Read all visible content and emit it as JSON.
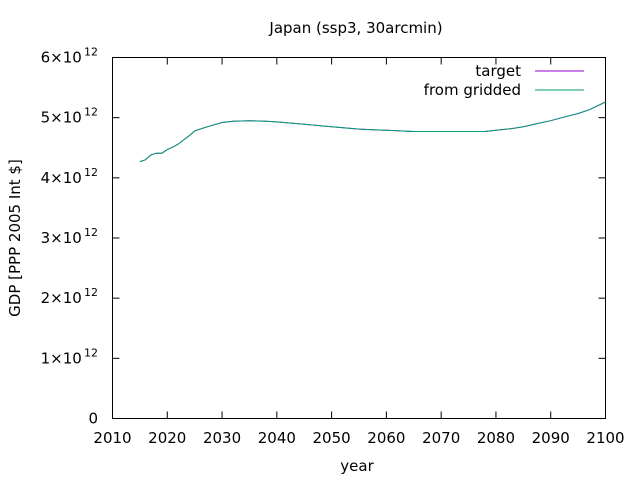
{
  "chart_data": {
    "type": "line",
    "title": "Japan (ssp3, 30arcmin)",
    "xlabel": "year",
    "ylabel": "GDP [PPP 2005 Int $]",
    "xlim": [
      2010,
      2100
    ],
    "ylim": [
      0,
      6000000000000.0
    ],
    "x_ticks": [
      "2010",
      "2020",
      "2030",
      "2040",
      "2050",
      "2060",
      "2070",
      "2080",
      "2090",
      "2100"
    ],
    "y_ticks": [
      {
        "value": 0,
        "mantissa": "0",
        "exp": ""
      },
      {
        "value": 1000000000000.0,
        "mantissa": "1×10",
        "exp": "12"
      },
      {
        "value": 2000000000000.0,
        "mantissa": "2×10",
        "exp": "12"
      },
      {
        "value": 3000000000000.0,
        "mantissa": "3×10",
        "exp": "12"
      },
      {
        "value": 4000000000000.0,
        "mantissa": "4×10",
        "exp": "12"
      },
      {
        "value": 5000000000000.0,
        "mantissa": "5×10",
        "exp": "12"
      },
      {
        "value": 6000000000000.0,
        "mantissa": "6×10",
        "exp": "12"
      }
    ],
    "legend_position": "top-right",
    "grid": false,
    "series": [
      {
        "name": "target",
        "color": "#9400d3",
        "x": [
          2015,
          2016,
          2017,
          2018,
          2019,
          2020,
          2021,
          2022,
          2023,
          2024,
          2025,
          2027,
          2030,
          2032,
          2035,
          2038,
          2040,
          2045,
          2050,
          2055,
          2060,
          2065,
          2070,
          2075,
          2078,
          2080,
          2083,
          2085,
          2087,
          2090,
          2092,
          2095,
          2097,
          2100
        ],
        "y": [
          4270000000000.0,
          4300000000000.0,
          4380000000000.0,
          4410000000000.0,
          4410000000000.0,
          4470000000000.0,
          4510000000000.0,
          4560000000000.0,
          4630000000000.0,
          4700000000000.0,
          4780000000000.0,
          4840000000000.0,
          4920000000000.0,
          4940000000000.0,
          4950000000000.0,
          4940000000000.0,
          4930000000000.0,
          4890000000000.0,
          4850000000000.0,
          4810000000000.0,
          4790000000000.0,
          4770000000000.0,
          4770000000000.0,
          4770000000000.0,
          4770000000000.0,
          4790000000000.0,
          4820000000000.0,
          4850000000000.0,
          4890000000000.0,
          4950000000000.0,
          5000000000000.0,
          5070000000000.0,
          5130000000000.0,
          5260000000000.0
        ]
      },
      {
        "name": "from gridded",
        "color": "#009e73",
        "x": [
          2015,
          2016,
          2017,
          2018,
          2019,
          2020,
          2021,
          2022,
          2023,
          2024,
          2025,
          2027,
          2030,
          2032,
          2035,
          2038,
          2040,
          2045,
          2050,
          2055,
          2060,
          2065,
          2070,
          2075,
          2078,
          2080,
          2083,
          2085,
          2087,
          2090,
          2092,
          2095,
          2097,
          2100
        ],
        "y": [
          4270000000000.0,
          4300000000000.0,
          4380000000000.0,
          4410000000000.0,
          4410000000000.0,
          4470000000000.0,
          4510000000000.0,
          4560000000000.0,
          4630000000000.0,
          4700000000000.0,
          4780000000000.0,
          4840000000000.0,
          4920000000000.0,
          4940000000000.0,
          4950000000000.0,
          4940000000000.0,
          4930000000000.0,
          4890000000000.0,
          4850000000000.0,
          4810000000000.0,
          4790000000000.0,
          4770000000000.0,
          4770000000000.0,
          4770000000000.0,
          4770000000000.0,
          4790000000000.0,
          4820000000000.0,
          4850000000000.0,
          4890000000000.0,
          4950000000000.0,
          5000000000000.0,
          5070000000000.0,
          5130000000000.0,
          5260000000000.0
        ]
      }
    ]
  }
}
